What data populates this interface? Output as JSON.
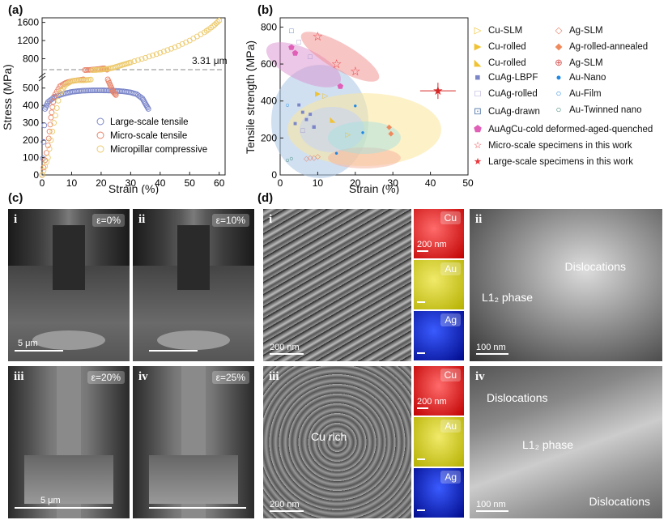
{
  "panels": {
    "a": "(a)",
    "b": "(b)",
    "c": "(c)",
    "d": "(d)"
  },
  "chart_a": {
    "type": "scatter",
    "xlabel": "Strain (%)",
    "ylabel": "Stress (MPa)",
    "annotation": "3.31 μm",
    "x_ticks": [
      "0",
      "10",
      "20",
      "30",
      "40",
      "50",
      "60"
    ],
    "y_ticks_low": [
      "0",
      "100",
      "200",
      "300",
      "400",
      "500"
    ],
    "y_ticks_high": [
      "800",
      "1200",
      "1600"
    ],
    "legend": [
      "Large-scale tensile",
      "Micro-scale tensile",
      "Micropillar compressive"
    ],
    "colors": {
      "large": "#7b86c9",
      "micro": "#e8836a",
      "pillar": "#ecc96a"
    }
  },
  "chart_data": [
    {
      "type": "scatter",
      "xlabel": "Strain (%)",
      "ylabel": "Stress (MPa)",
      "broken_axis": {
        "low": [
          0,
          550
        ],
        "high": [
          550,
          1700
        ]
      },
      "series": [
        {
          "name": "Large-scale tensile",
          "x": [
            0,
            1,
            2,
            4,
            6,
            8,
            10,
            12,
            14,
            16,
            18,
            20,
            22,
            24,
            26,
            28,
            30,
            32,
            34,
            35,
            36
          ],
          "y": [
            0,
            380,
            420,
            445,
            460,
            470,
            478,
            482,
            485,
            486,
            487,
            487,
            486,
            485,
            483,
            480,
            475,
            465,
            440,
            410,
            380
          ]
        },
        {
          "name": "Micro-scale tensile",
          "x": [
            0,
            2,
            3,
            4,
            6,
            8,
            10,
            12,
            14,
            16,
            18,
            20,
            21,
            22,
            23,
            24,
            25
          ],
          "y": [
            0,
            170,
            330,
            450,
            510,
            530,
            540,
            545,
            550,
            555,
            565,
            580,
            590,
            560,
            520,
            480,
            460
          ]
        },
        {
          "name": "Micropillar compressive",
          "x": [
            0,
            2,
            4,
            6,
            8,
            10,
            12,
            14,
            16,
            18,
            20,
            22,
            24,
            26,
            28,
            30,
            35,
            40,
            45,
            50,
            55,
            58,
            60
          ],
          "y": [
            0,
            100,
            300,
            470,
            520,
            540,
            545,
            545,
            548,
            553,
            560,
            575,
            600,
            640,
            680,
            720,
            820,
            930,
            1050,
            1200,
            1380,
            1520,
            1640
          ]
        }
      ]
    },
    {
      "type": "scatter",
      "xlabel": "Strain (%)",
      "ylabel": "Tensile strength (MPa)",
      "xlim": [
        0,
        50
      ],
      "ylim": [
        0,
        850
      ],
      "x_ticks": [
        "0",
        "10",
        "20",
        "30",
        "40",
        "50"
      ],
      "y_ticks": [
        "0",
        "200",
        "400",
        "600",
        "800"
      ],
      "series": [
        {
          "name": "Micro-scale specimens in this work",
          "x": [
            10,
            15,
            20
          ],
          "y": [
            750,
            600,
            560
          ]
        },
        {
          "name": "Large-scale specimens in this work",
          "x": [
            42
          ],
          "y": [
            455
          ]
        },
        {
          "name": "Au-Nano",
          "x": [
            20,
            22,
            15
          ],
          "y": [
            375,
            230,
            120
          ]
        },
        {
          "name": "Ag-rolled-annealed",
          "x": [
            29,
            29.5
          ],
          "y": [
            260,
            225
          ]
        },
        {
          "name": "CuAg-LBPF",
          "x": [
            5,
            6,
            7,
            8,
            4
          ],
          "y": [
            380,
            340,
            300,
            330,
            280
          ]
        },
        {
          "name": "AuAgCu-cold deformed-aged-quenched",
          "x": [
            3,
            4,
            16
          ],
          "y": [
            690,
            660,
            480
          ]
        },
        {
          "name": "Ag-SLM",
          "x": [
            7,
            8,
            9,
            10
          ],
          "y": [
            90,
            95,
            95,
            100
          ]
        }
      ]
    }
  ],
  "chart_b_legend": [
    {
      "sym": "▷",
      "color": "#f1c232",
      "label": "Cu-SLM"
    },
    {
      "sym": "◇",
      "color": "#e8836a",
      "label": "Ag-SLM"
    },
    {
      "sym": "▶",
      "color": "#f1c232",
      "label": "Cu-rolled"
    },
    {
      "sym": "◆",
      "color": "#f08a5d",
      "label": "Ag-rolled-annealed"
    },
    {
      "sym": "◣",
      "color": "#f1c232",
      "label": "Cu-rolled"
    },
    {
      "sym": "⊕",
      "color": "#d9534f",
      "label": "Ag-SLM"
    },
    {
      "sym": "■",
      "color": "#7b86c9",
      "label": "CuAg-LBPF"
    },
    {
      "sym": "●",
      "color": "#1e88e5",
      "label": "Au-Nano"
    },
    {
      "sym": "□",
      "color": "#9b8ec9",
      "label": "CuAg-rolled"
    },
    {
      "sym": "○",
      "color": "#1e88e5",
      "label": "Au-Film"
    },
    {
      "sym": "⊡",
      "color": "#4a6fa5",
      "label": "CuAg-drawn"
    },
    {
      "sym": "○",
      "color": "#2e7d6b",
      "label": "Au-Twinned nano"
    }
  ],
  "chart_b_legend_wide": [
    {
      "sym": "⬟",
      "color": "#e060b8",
      "label": "AuAgCu-cold deformed-aged-quenched"
    },
    {
      "sym": "☆",
      "color": "#e8383d",
      "label": "Micro-scale specimens in this work"
    },
    {
      "sym": "★",
      "color": "#e8383d",
      "label": "Large-scale specimens in this work"
    }
  ],
  "panel_c": {
    "tiles": [
      {
        "num": "i",
        "eps": "ε=0%",
        "scale": "5 μm"
      },
      {
        "num": "ii",
        "eps": "ε=10%",
        "scale": ""
      },
      {
        "num": "iii",
        "eps": "ε=20%",
        "scale": "5 μm"
      },
      {
        "num": "iv",
        "eps": "ε=25%",
        "scale": ""
      }
    ]
  },
  "panel_d": {
    "i_scale": "200 nm",
    "map_scale": "200 nm",
    "ii_scale": "100 nm",
    "iii_scale": "200 nm",
    "iii_map_scale": "200 nm",
    "iv_scale": "100 nm",
    "elements": [
      "Cu",
      "Au",
      "Ag"
    ],
    "ii_labels": [
      "Dislocations",
      "L1₂ phase"
    ],
    "iii_label": "Cu rich",
    "iv_labels": [
      "Dislocations",
      "L1₂ phase",
      "Dislocations"
    ],
    "nums": [
      "i",
      "ii",
      "iii",
      "iv"
    ]
  }
}
